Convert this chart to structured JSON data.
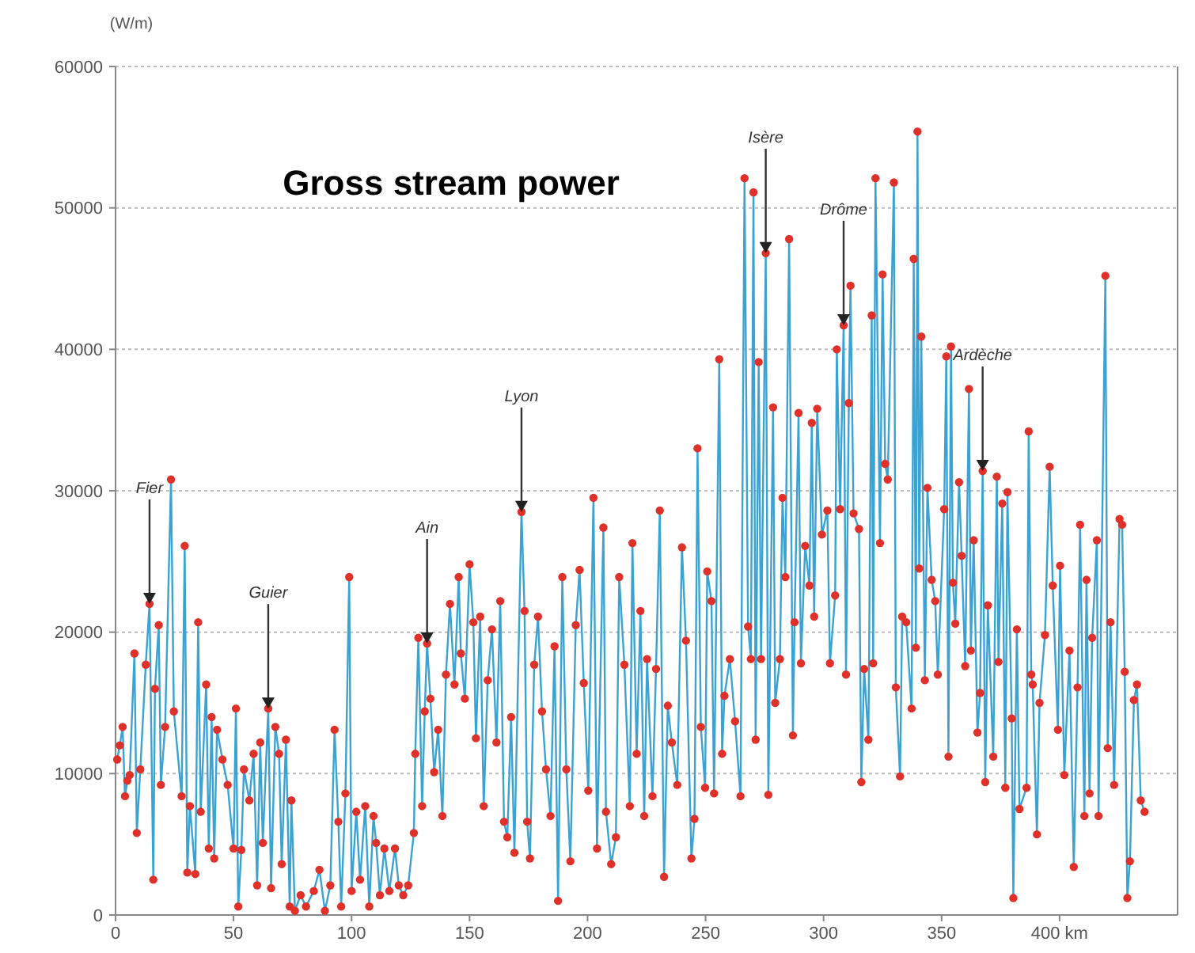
{
  "chart_data": {
    "type": "line",
    "title": "Gross stream power",
    "ylabel": "(W/m)",
    "xlim": [
      0,
      450
    ],
    "xticks": [
      0,
      50,
      100,
      150,
      200,
      250,
      300,
      350,
      {
        "value": 400,
        "label": "400 km"
      }
    ],
    "ylim": [
      0,
      60000
    ],
    "yticks": [
      0,
      10000,
      20000,
      30000,
      40000,
      50000,
      60000
    ],
    "grid": "y",
    "x": [
      0.7,
      1.8,
      3,
      4,
      5,
      6,
      8,
      9,
      10.5,
      12.8,
      14.4,
      16,
      16.7,
      18.3,
      19.2,
      21,
      23.5,
      24.7,
      28,
      29.3,
      30.4,
      31.5,
      33.8,
      35,
      36.1,
      38.4,
      39.5,
      40.7,
      41.8,
      43,
      45.3,
      47.5,
      50,
      51,
      52,
      53.3,
      54.4,
      56.7,
      58.5,
      60,
      61.3,
      62.4,
      64.7,
      65.9,
      67.7,
      69.3,
      70.4,
      72.2,
      73.8,
      74.5,
      76,
      78.4,
      80.7,
      84,
      86.4,
      88.7,
      91,
      92.8,
      94.4,
      95.6,
      97.4,
      99,
      100,
      102,
      103.6,
      105.8,
      107.5,
      109.3,
      110.4,
      112,
      113.9,
      116,
      118.4,
      120,
      121.9,
      124,
      126.4,
      127,
      128.3,
      129.9,
      131,
      132,
      133.4,
      135,
      136.7,
      138.5,
      140,
      141.7,
      143.6,
      145.4,
      146.3,
      148,
      150,
      151.6,
      152.7,
      154.5,
      156,
      157.7,
      159.5,
      161.4,
      163,
      164.6,
      166,
      167.6,
      169,
      172,
      173.3,
      174.4,
      175.6,
      177.4,
      179,
      180.7,
      182.4,
      184.3,
      186,
      187.5,
      189.3,
      191,
      192.7,
      195,
      196.6,
      198.4,
      200.3,
      202.5,
      204,
      206.7,
      207.8,
      210,
      212,
      213.4,
      215.6,
      217.9,
      219,
      220.8,
      222.4,
      224,
      225.2,
      227.5,
      229,
      230.6,
      232.4,
      234,
      235.7,
      238,
      240,
      241.7,
      244,
      245.3,
      246.6,
      248,
      249.8,
      250.7,
      252.5,
      253.6,
      255.8,
      257,
      258,
      260.3,
      262.5,
      264.8,
      266.5,
      268,
      269.2,
      270.3,
      271.2,
      272.5,
      273.5,
      275.5,
      276.6,
      278.6,
      279.5,
      281.5,
      282.6,
      283.8,
      285.4,
      287,
      287.7,
      289.4,
      290.4,
      292.2,
      294,
      295,
      296,
      297.3,
      299.3,
      301.6,
      302.7,
      304.9,
      305.6,
      307,
      308.5,
      309.5,
      310.7,
      311.4,
      312.7,
      315,
      316,
      317.2,
      319,
      320.4,
      321,
      322,
      323.9,
      325,
      326.1,
      327.2,
      329.8,
      330.6,
      332.4,
      333.3,
      335,
      337.3,
      338.2,
      339.1,
      339.8,
      340.5,
      341.4,
      342.9,
      344,
      345.8,
      347.3,
      348.4,
      351.1,
      352,
      352.9,
      354,
      354.8,
      355.8,
      357.4,
      358.5,
      360,
      361.6,
      362.4,
      363.6,
      365.2,
      366.3,
      367.4,
      368.5,
      369.6,
      371.9,
      373.4,
      374.1,
      375.7,
      377,
      377.9,
      379.7,
      380.4,
      381.9,
      383,
      386,
      386.9,
      388,
      388.6,
      390.4,
      391.5,
      393.8,
      395.8,
      397.1,
      399.3,
      400.2,
      402,
      404.2,
      406,
      407.6,
      408.7,
      410.5,
      411.4,
      412.7,
      413.8,
      415.8,
      416.5,
      419.4,
      420.4,
      421.6,
      423.1,
      425.4,
      426.5,
      427.6,
      428.7,
      429.8,
      431.5,
      432.8,
      434.4,
      436
    ],
    "series": [
      {
        "color": "#3aa3d4",
        "marker": "none",
        "values": [
          11000,
          12000,
          13300,
          8400,
          9500,
          9900,
          18500,
          5800,
          10300,
          17700,
          22000,
          2500,
          16000,
          20500,
          9200,
          13300,
          30800,
          14400,
          8400,
          26100,
          3000,
          7700,
          2900,
          20700,
          7300,
          16300,
          4700,
          14000,
          4000,
          13100,
          11000,
          9200,
          4700,
          14600,
          600,
          4600,
          10300,
          8100,
          11400,
          2100,
          12200,
          5100,
          14600,
          1900,
          13300,
          11400,
          3600,
          12400,
          600,
          8100,
          300,
          1400,
          600,
          1700,
          3200,
          300,
          2100,
          13100,
          6600,
          600,
          8600,
          23900,
          1700,
          7300,
          2500,
          7700,
          600,
          7000,
          5100,
          1400,
          4700,
          1700,
          4700,
          2100,
          1400,
          2100,
          5800,
          11400,
          19600,
          7700,
          14400,
          19200,
          15300,
          10100,
          13100,
          7000,
          17000,
          22000,
          16300,
          23900,
          18500,
          15300,
          24800,
          20700,
          12500,
          21100,
          7700,
          16600,
          20200,
          12200,
          22200,
          6600,
          5500,
          14000,
          4400,
          28500,
          21500,
          6600,
          4000,
          17700,
          21100,
          14400,
          10300,
          7000,
          19000,
          1000,
          23900,
          10300,
          3800,
          20500,
          24400,
          16400,
          8800,
          29500,
          4700,
          27400,
          7300,
          3600,
          5500,
          23900,
          17700,
          7700,
          26300,
          11400,
          21500,
          7000,
          18100,
          8400,
          17400,
          28600,
          2700,
          14800,
          12200,
          9200,
          26000,
          19400,
          4000,
          6800,
          33000,
          13300,
          9000,
          24300,
          22200,
          8600,
          39300,
          11400,
          15500,
          18100,
          13700,
          8400,
          52100,
          20400,
          18100,
          51100,
          12400,
          39100,
          18100,
          46800,
          8500,
          35900,
          15000,
          18100,
          29500,
          23900,
          47800,
          12700,
          20700,
          35500,
          17800,
          26100,
          23300,
          34800,
          21100,
          35800,
          26900,
          28600,
          17800,
          22600,
          40000,
          28700,
          41700,
          17000,
          36200,
          44500,
          28400,
          27300,
          9400,
          17400,
          12400,
          42400,
          17800,
          52100,
          26300,
          45300,
          31900,
          30800,
          51800,
          16100,
          9800,
          21100,
          20700,
          14600,
          46400,
          18900,
          55400,
          24500,
          40900,
          16600,
          30200,
          23700,
          22200,
          17000,
          28700,
          39500,
          11200,
          40200,
          23500,
          20600,
          30600,
          25400,
          17600,
          37200,
          18700,
          26500,
          12900,
          15700,
          31400,
          9400,
          21900,
          11200,
          31000,
          17900,
          29100,
          9000,
          29900,
          13900,
          1200,
          20200,
          7500,
          9000,
          34200,
          17000,
          16300,
          5700,
          15000,
          19800,
          31700,
          23300,
          13100,
          24700,
          9900,
          18700,
          3400,
          16100,
          27600,
          7000,
          23700,
          8600,
          19600,
          26500,
          7000,
          45200,
          11800,
          20700,
          9200,
          28000,
          27600,
          17200,
          1200,
          3800,
          15200,
          16300,
          8100,
          7300
        ]
      },
      {
        "type": "scatter",
        "color": "#e0302a",
        "marker": "circle",
        "values": [
          11000,
          12000,
          13300,
          8400,
          9500,
          9900,
          18500,
          5800,
          10300,
          17700,
          22000,
          2500,
          16000,
          20500,
          9200,
          13300,
          30800,
          14400,
          8400,
          26100,
          3000,
          7700,
          2900,
          20700,
          7300,
          16300,
          4700,
          14000,
          4000,
          13100,
          11000,
          9200,
          4700,
          14600,
          600,
          4600,
          10300,
          8100,
          11400,
          2100,
          12200,
          5100,
          14600,
          1900,
          13300,
          11400,
          3600,
          12400,
          600,
          8100,
          300,
          1400,
          600,
          1700,
          3200,
          300,
          2100,
          13100,
          6600,
          600,
          8600,
          23900,
          1700,
          7300,
          2500,
          7700,
          600,
          7000,
          5100,
          1400,
          4700,
          1700,
          4700,
          2100,
          1400,
          2100,
          5800,
          11400,
          19600,
          7700,
          14400,
          19200,
          15300,
          10100,
          13100,
          7000,
          17000,
          22000,
          16300,
          23900,
          18500,
          15300,
          24800,
          20700,
          12500,
          21100,
          7700,
          16600,
          20200,
          12200,
          22200,
          6600,
          5500,
          14000,
          4400,
          28500,
          21500,
          6600,
          4000,
          17700,
          21100,
          14400,
          10300,
          7000,
          19000,
          1000,
          23900,
          10300,
          3800,
          20500,
          24400,
          16400,
          8800,
          29500,
          4700,
          27400,
          7300,
          3600,
          5500,
          23900,
          17700,
          7700,
          26300,
          11400,
          21500,
          7000,
          18100,
          8400,
          17400,
          28600,
          2700,
          14800,
          12200,
          9200,
          26000,
          19400,
          4000,
          6800,
          33000,
          13300,
          9000,
          24300,
          22200,
          8600,
          39300,
          11400,
          15500,
          18100,
          13700,
          8400,
          52100,
          20400,
          18100,
          51100,
          12400,
          39100,
          18100,
          46800,
          8500,
          35900,
          15000,
          18100,
          29500,
          23900,
          47800,
          12700,
          20700,
          35500,
          17800,
          26100,
          23300,
          34800,
          21100,
          35800,
          26900,
          28600,
          17800,
          22600,
          40000,
          28700,
          41700,
          17000,
          36200,
          44500,
          28400,
          27300,
          9400,
          17400,
          12400,
          42400,
          17800,
          52100,
          26300,
          45300,
          31900,
          30800,
          51800,
          16100,
          9800,
          21100,
          20700,
          14600,
          46400,
          18900,
          55400,
          24500,
          40900,
          16600,
          30200,
          23700,
          22200,
          17000,
          28700,
          39500,
          11200,
          40200,
          23500,
          20600,
          30600,
          25400,
          17600,
          37200,
          18700,
          26500,
          12900,
          15700,
          31400,
          9400,
          21900,
          11200,
          31000,
          17900,
          29100,
          9000,
          29900,
          13900,
          1200,
          20200,
          7500,
          9000,
          34200,
          17000,
          16300,
          5700,
          15000,
          19800,
          31700,
          23300,
          13100,
          24700,
          9900,
          18700,
          3400,
          16100,
          27600,
          7000,
          23700,
          8600,
          19600,
          26500,
          7000,
          45200,
          11800,
          20700,
          9200,
          28000,
          27600,
          17200,
          1200,
          3800,
          15200,
          16300,
          8100,
          7300
        ]
      }
    ],
    "annotations": [
      {
        "text": "Fier",
        "x": 14.4,
        "y": 22000
      },
      {
        "text": "Guier",
        "x": 64.7,
        "y": 14600
      },
      {
        "text": "Ain",
        "x": 132,
        "y": 19200
      },
      {
        "text": "Lyon",
        "x": 172,
        "y": 28500
      },
      {
        "text": "Isère",
        "x": 275.5,
        "y": 46800
      },
      {
        "text": "Drôme",
        "x": 308.5,
        "y": 41700
      },
      {
        "text": "Ardèche",
        "x": 367.4,
        "y": 31400
      }
    ]
  }
}
